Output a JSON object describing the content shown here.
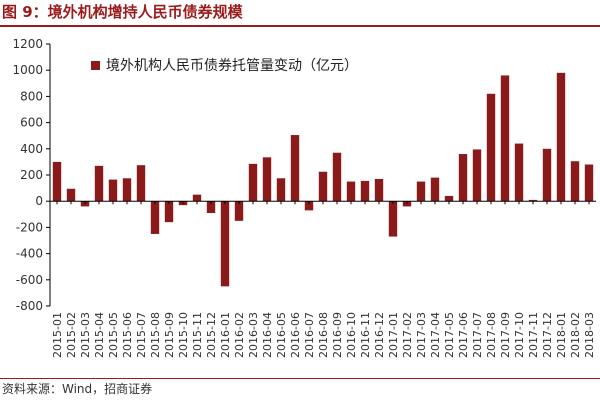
{
  "figure": {
    "title": "图 9：境外机构增持人民币债券规模",
    "source": "资料来源：Wind，招商证券"
  },
  "colors": {
    "bar": "#8b1a1a",
    "title": "#9a1b1b",
    "axis": "#000000",
    "tick_text": "#333333"
  },
  "chart_data": {
    "type": "bar",
    "title": "",
    "xlabel": "",
    "ylabel": "",
    "ylim": [
      -800,
      1200
    ],
    "yticks": [
      -800,
      -600,
      -400,
      -200,
      0,
      200,
      400,
      600,
      800,
      1000,
      1200
    ],
    "grid": false,
    "legend_position": "top-left",
    "categories": [
      "2015-01",
      "2015-02",
      "2015-03",
      "2015-04",
      "2015-05",
      "2015-06",
      "2015-07",
      "2015-08",
      "2015-09",
      "2015-10",
      "2015-11",
      "2015-12",
      "2016-01",
      "2016-02",
      "2016-03",
      "2016-04",
      "2016-05",
      "2016-06",
      "2016-07",
      "2016-08",
      "2016-09",
      "2016-10",
      "2016-11",
      "2016-12",
      "2017-01",
      "2017-02",
      "2017-03",
      "2017-04",
      "2017-05",
      "2017-06",
      "2017-07",
      "2017-08",
      "2017-09",
      "2017-10",
      "2017-11",
      "2017-12",
      "2018-01",
      "2018-02",
      "2018-03"
    ],
    "series": [
      {
        "name": "境外机构人民币债券托管量变动（亿元）",
        "values": [
          300,
          95,
          -40,
          270,
          165,
          175,
          275,
          -250,
          -160,
          -30,
          50,
          -90,
          -650,
          -150,
          285,
          335,
          175,
          505,
          -70,
          225,
          370,
          150,
          155,
          170,
          -270,
          -40,
          150,
          180,
          40,
          360,
          395,
          820,
          960,
          440,
          10,
          400,
          980,
          305,
          280
        ]
      }
    ]
  }
}
